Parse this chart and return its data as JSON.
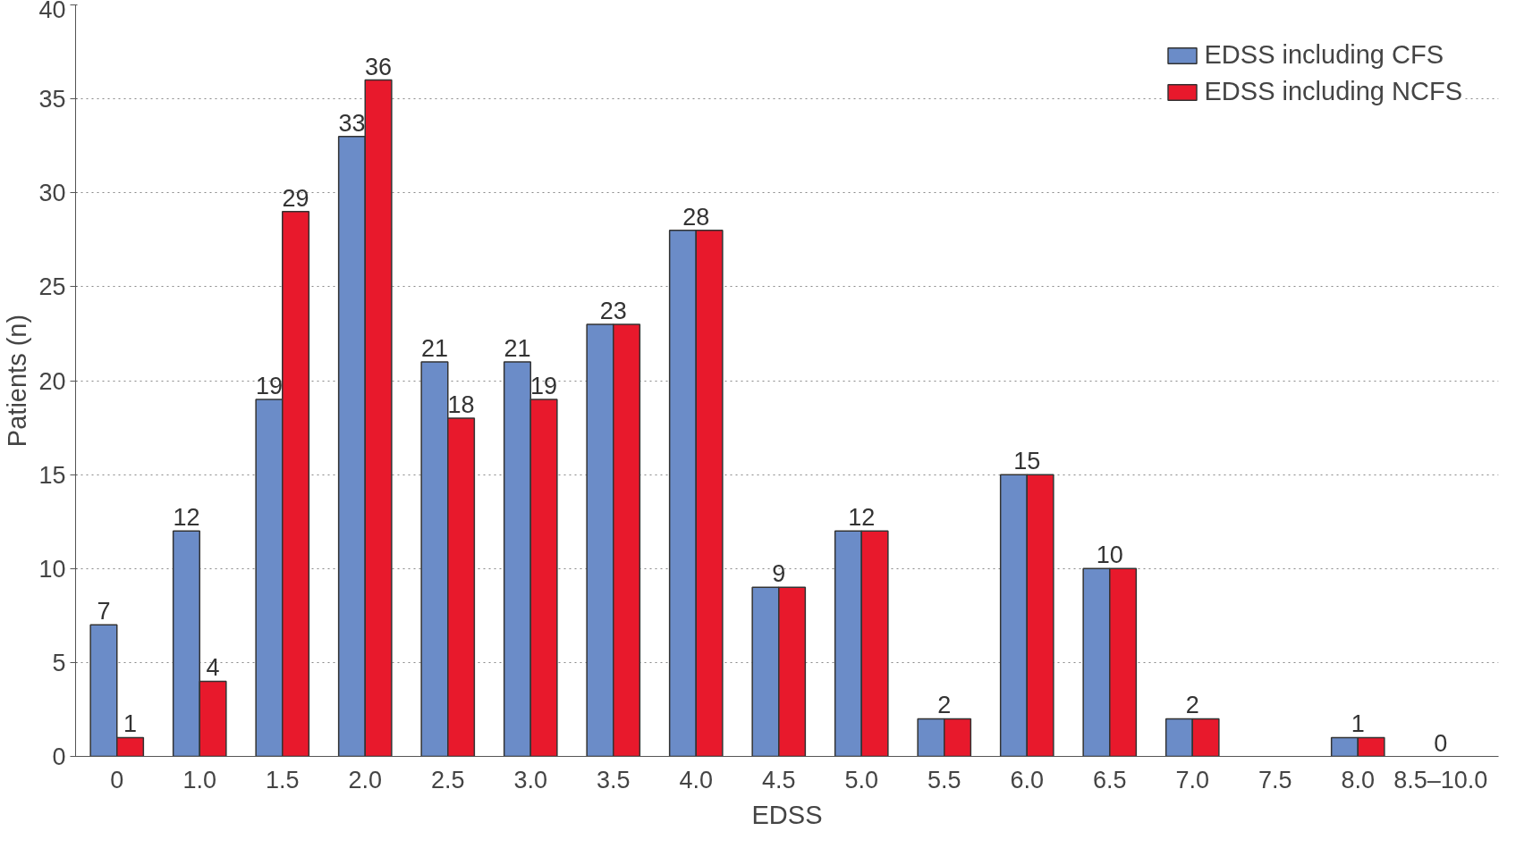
{
  "chart_data": {
    "type": "bar",
    "xlabel": "EDSS",
    "ylabel": "Patients (n)",
    "categories": [
      "0",
      "1.0",
      "1.5",
      "2.0",
      "2.5",
      "3.0",
      "3.5",
      "4.0",
      "4.5",
      "5.0",
      "5.5",
      "6.0",
      "6.5",
      "7.0",
      "7.5",
      "8.0",
      "8.5–10.0"
    ],
    "series": [
      {
        "name": "EDSS including CFS",
        "color": "#6b8cc8",
        "values": [
          7,
          12,
          19,
          33,
          21,
          21,
          23,
          28,
          9,
          12,
          2,
          15,
          10,
          2,
          0,
          1,
          0
        ],
        "value_labels": [
          "7",
          "12",
          "19",
          "33",
          "21",
          "21",
          "23",
          "28",
          "9",
          "12",
          "2",
          "15",
          "10",
          "2",
          null,
          "1",
          "0"
        ]
      },
      {
        "name": "EDSS including NCFS",
        "color": "#e8192c",
        "values": [
          1,
          4,
          29,
          36,
          18,
          19,
          23,
          28,
          9,
          12,
          2,
          15,
          10,
          2,
          0,
          1,
          0
        ],
        "value_labels": [
          "1",
          "4",
          "29",
          "36",
          "18",
          "19",
          null,
          null,
          null,
          null,
          null,
          null,
          null,
          null,
          null,
          null,
          null
        ]
      }
    ],
    "ylim": [
      0,
      40
    ],
    "yticks": [
      0,
      5,
      10,
      15,
      20,
      25,
      30,
      35,
      40
    ],
    "grid": "y",
    "legend": "top right"
  }
}
